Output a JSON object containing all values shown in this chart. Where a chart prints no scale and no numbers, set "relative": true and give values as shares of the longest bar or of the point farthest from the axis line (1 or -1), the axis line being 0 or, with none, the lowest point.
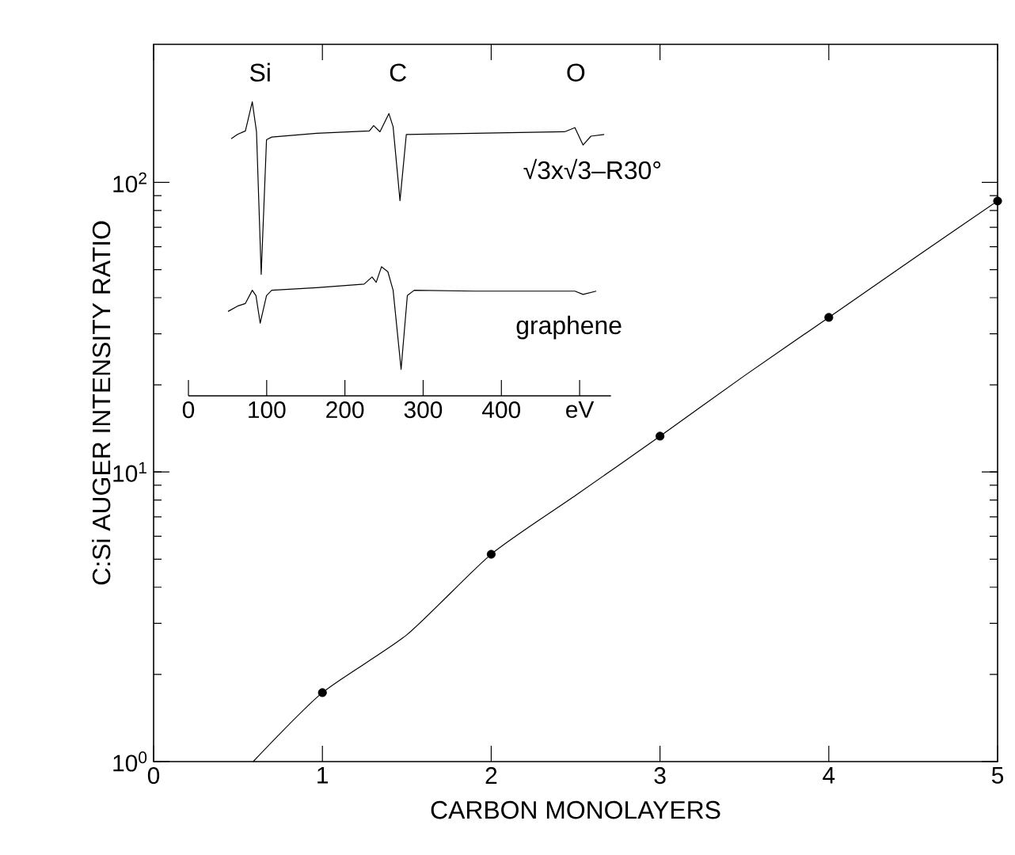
{
  "chart_data": [
    {
      "type": "scatter",
      "xlabel": "CARBON MONOLAYERS",
      "ylabel": "C:Si AUGER INTENSITY RATIO",
      "log": "y",
      "xlim": [
        0,
        5
      ],
      "ylim": [
        1,
        300
      ],
      "xticks": [
        0,
        1,
        2,
        3,
        4,
        5
      ],
      "yticks": [
        {
          "value": 1,
          "label": "10$^{0}$"
        },
        {
          "value": 10,
          "label": "10$^{1}$"
        },
        {
          "value": 100,
          "label": "10$^{2}$"
        }
      ],
      "series": [
        {
          "type": "scatter",
          "marker": "circle",
          "color": "#000000",
          "x": [
            1,
            2,
            3,
            4,
            5
          ],
          "values": [
            1.73,
            5.2,
            13.3,
            34.2,
            86.3
          ]
        },
        {
          "type": "line",
          "marker": "none",
          "color": "#000000",
          "x": [
            0.59,
            1,
            1.5,
            2,
            2.5,
            3,
            3.5,
            4,
            4.5,
            5
          ],
          "values": [
            1.0,
            1.73,
            2.74,
            5.2,
            8.3,
            13.3,
            21.5,
            34.2,
            54.5,
            86.3
          ]
        }
      ]
    },
    {
      "type": "line",
      "relative": true,
      "tick_labels": "x",
      "xlim": [
        0,
        540
      ],
      "xticks": [
        0,
        100,
        200,
        300,
        400,
        {
          "value": 500,
          "label": "eV"
        }
      ],
      "annotations": [
        "Si",
        "C",
        "O"
      ],
      "series": [
        {
          "name": "√3x√3–R30°",
          "color": "#000000",
          "x": [
            54.6,
            62.7,
            72.8,
            81.6,
            87,
            93,
            99.8,
            106.5,
            163.9,
            231.3,
            236.7,
            244.8,
            256.2,
            261.6,
            270.4,
            278.5,
            366,
            480.8,
            494,
            504.4,
            514.5,
            531.4
          ],
          "values": [
            0.874,
            0.889,
            0.901,
            1.0,
            0.898,
            0.413,
            0.871,
            0.88,
            0.893,
            0.901,
            0.919,
            0.898,
            0.96,
            0.915,
            0.664,
            0.889,
            0.893,
            0.898,
            0.912,
            0.853,
            0.883,
            0.889
          ]
        },
        {
          "name": "graphene",
          "color": "#000000",
          "x": [
            50.6,
            62.7,
            72.8,
            81.6,
            86.3,
            91.7,
            99.8,
            106.5,
            163.9,
            224.5,
            234.7,
            240,
            246.8,
            254.9,
            261.6,
            271.8,
            279.8,
            288.6,
            366,
            494,
            504.4,
            521.2
          ],
          "values": [
            0.287,
            0.305,
            0.314,
            0.359,
            0.341,
            0.247,
            0.341,
            0.359,
            0.368,
            0.38,
            0.404,
            0.386,
            0.439,
            0.422,
            0.359,
            0.09,
            0.341,
            0.359,
            0.356,
            0.356,
            0.345,
            0.356
          ]
        }
      ]
    }
  ]
}
